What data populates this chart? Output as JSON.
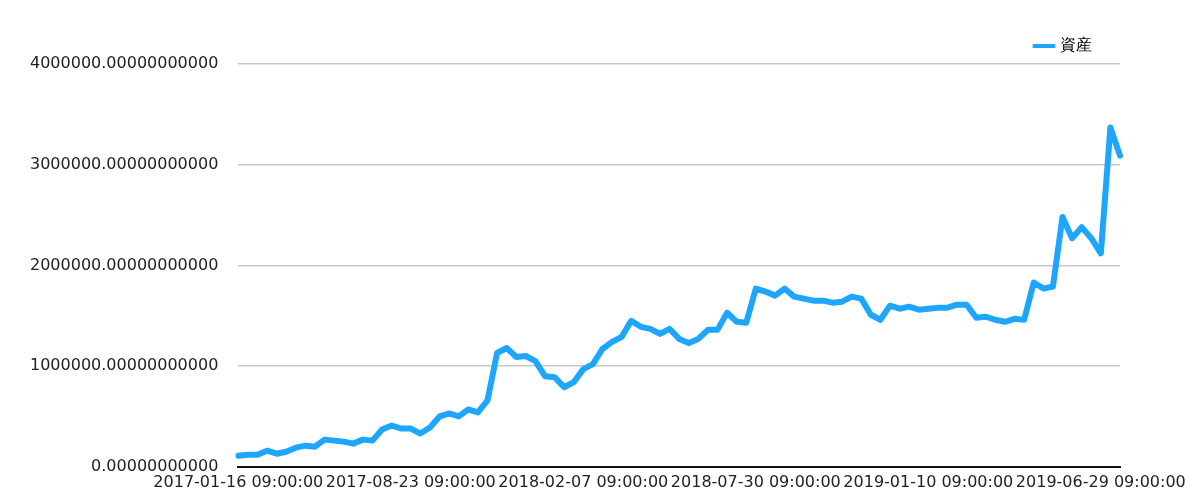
{
  "chart_data": {
    "type": "line",
    "categories": [
      "2017-01-16 09:00:00",
      null,
      null,
      null,
      null,
      null,
      null,
      null,
      null,
      null,
      null,
      null,
      null,
      null,
      null,
      null,
      null,
      null,
      "2017-08-23 09:00:00",
      null,
      null,
      null,
      null,
      null,
      null,
      null,
      null,
      null,
      null,
      null,
      null,
      null,
      null,
      null,
      null,
      null,
      "2018-02-07 09:00:00",
      null,
      null,
      null,
      null,
      null,
      null,
      null,
      null,
      null,
      null,
      null,
      null,
      null,
      null,
      null,
      null,
      null,
      "2018-07-30 09:00:00",
      null,
      null,
      null,
      null,
      null,
      null,
      null,
      null,
      null,
      null,
      null,
      null,
      null,
      null,
      null,
      null,
      null,
      "2019-01-10 09:00:00",
      null,
      null,
      null,
      null,
      null,
      null,
      null,
      null,
      null,
      null,
      null,
      null,
      null,
      null,
      null,
      null,
      null,
      "2019-06-29 09:00:00",
      null,
      null
    ],
    "series": [
      {
        "name": "資産",
        "color": "#1ea5fc",
        "values": [
          110000,
          120000,
          120000,
          160000,
          130000,
          150000,
          190000,
          210000,
          200000,
          270000,
          260000,
          250000,
          230000,
          270000,
          260000,
          370000,
          410000,
          380000,
          380000,
          330000,
          390000,
          500000,
          530000,
          500000,
          570000,
          540000,
          660000,
          1130000,
          1180000,
          1090000,
          1100000,
          1050000,
          900000,
          890000,
          790000,
          840000,
          970000,
          1020000,
          1170000,
          1240000,
          1290000,
          1450000,
          1390000,
          1370000,
          1320000,
          1370000,
          1270000,
          1230000,
          1270000,
          1360000,
          1360000,
          1530000,
          1440000,
          1430000,
          1770000,
          1740000,
          1700000,
          1770000,
          1690000,
          1670000,
          1650000,
          1650000,
          1630000,
          1640000,
          1690000,
          1670000,
          1510000,
          1460000,
          1600000,
          1570000,
          1590000,
          1560000,
          1570000,
          1580000,
          1580000,
          1610000,
          1610000,
          1480000,
          1490000,
          1460000,
          1440000,
          1470000,
          1460000,
          1830000,
          1770000,
          1790000,
          2480000,
          2270000,
          2380000,
          2270000,
          2120000,
          3370000,
          3090000
        ]
      }
    ],
    "ylim": [
      0,
      4000000
    ],
    "yticks": [
      {
        "value": 0,
        "label": "0.00000000000"
      },
      {
        "value": 1000000,
        "label": "1000000.00000000000"
      },
      {
        "value": 2000000,
        "label": "2000000.00000000000"
      },
      {
        "value": 3000000,
        "label": "3000000.00000000000"
      },
      {
        "value": 4000000,
        "label": "4000000.00000000000"
      }
    ],
    "grid": "y",
    "legend": "top right",
    "marker": "none",
    "line_style": "solid"
  }
}
